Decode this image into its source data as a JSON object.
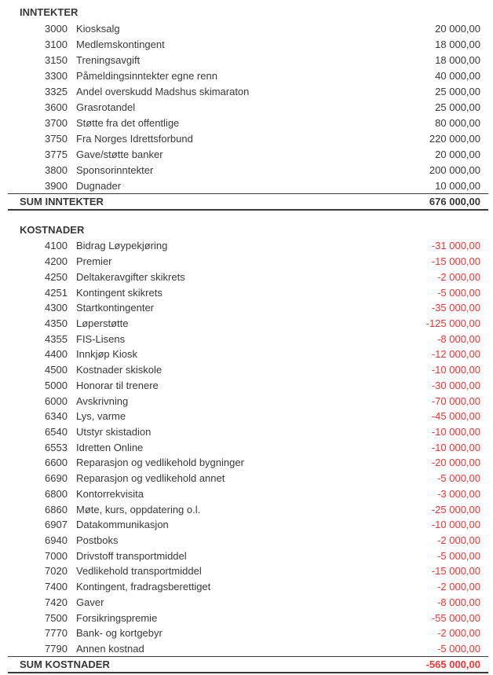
{
  "report": {
    "colors": {
      "text": "#373737",
      "negative_amount": "#ff3030",
      "sum_rule": "#3a3a3a"
    },
    "sections": [
      {
        "id": "inntekter",
        "title": "INNTEKTER",
        "rows": [
          {
            "account": "3000",
            "label": "Kiosksalg",
            "amount": "20 000,00"
          },
          {
            "account": "3100",
            "label": "Medlemskontingent",
            "amount": "18 000,00"
          },
          {
            "account": "3150",
            "label": "Treningsavgift",
            "amount": "18 000,00"
          },
          {
            "account": "3300",
            "label": "Påmeldingsinntekter egne renn",
            "amount": "40 000,00"
          },
          {
            "account": "3325",
            "label": "Andel overskudd Madshus skimaraton",
            "amount": "25 000,00"
          },
          {
            "account": "3600",
            "label": "Grasrotandel",
            "amount": "25 000,00"
          },
          {
            "account": "3700",
            "label": "Støtte fra det offentlige",
            "amount": "80 000,00"
          },
          {
            "account": "3750",
            "label": "Fra Norges Idrettsforbund",
            "amount": "220 000,00"
          },
          {
            "account": "3775",
            "label": "Gave/støtte banker",
            "amount": "20 000,00"
          },
          {
            "account": "3800",
            "label": "Sponsorinntekter",
            "amount": "200 000,00"
          },
          {
            "account": "3900",
            "label": "Dugnader",
            "amount": "10 000,00"
          }
        ],
        "sum_label": "SUM INNTEKTER",
        "sum_amount": "676 000,00"
      },
      {
        "id": "kostnader",
        "title": "KOSTNADER",
        "rows": [
          {
            "account": "4100",
            "label": "Bidrag Løypekjøring",
            "amount": "-31 000,00"
          },
          {
            "account": "4200",
            "label": "Premier",
            "amount": "-15 000,00"
          },
          {
            "account": "4250",
            "label": "Deltakeravgifter skikrets",
            "amount": "-2 000,00"
          },
          {
            "account": "4251",
            "label": "Kontingent skikrets",
            "amount": "-5 000,00"
          },
          {
            "account": "4300",
            "label": "Startkontingenter",
            "amount": "-35 000,00"
          },
          {
            "account": "4350",
            "label": "Løperstøtte",
            "amount": "-125 000,00"
          },
          {
            "account": "4355",
            "label": "FIS-Lisens",
            "amount": "-8 000,00"
          },
          {
            "account": "4400",
            "label": "Innkjøp Kiosk",
            "amount": "-12 000,00"
          },
          {
            "account": "4500",
            "label": "Kostnader skiskole",
            "amount": "-10 000,00"
          },
          {
            "account": "5000",
            "label": "Honorar til trenere",
            "amount": "-30 000,00"
          },
          {
            "account": "6000",
            "label": "Avskrivning",
            "amount": "-70 000,00"
          },
          {
            "account": "6340",
            "label": "Lys, varme",
            "amount": "-45 000,00"
          },
          {
            "account": "6540",
            "label": "Utstyr skistadion",
            "amount": "-10 000,00"
          },
          {
            "account": "6553",
            "label": "Idretten Online",
            "amount": "-10 000,00"
          },
          {
            "account": "6600",
            "label": "Reparasjon og vedlikehold bygninger",
            "amount": "-20 000,00"
          },
          {
            "account": "6690",
            "label": "Reparasjon og vedlikehold annet",
            "amount": "-5 000,00"
          },
          {
            "account": "6800",
            "label": "Kontorrekvisita",
            "amount": "-3 000,00"
          },
          {
            "account": "6860",
            "label": "Møte, kurs, oppdatering o.l.",
            "amount": "-25 000,00"
          },
          {
            "account": "6907",
            "label": "Datakommunikasjon",
            "amount": "-10 000,00"
          },
          {
            "account": "6940",
            "label": "Postboks",
            "amount": "-2 000,00"
          },
          {
            "account": "7000",
            "label": "Drivstoff transportmiddel",
            "amount": "-5 000,00"
          },
          {
            "account": "7020",
            "label": "Vedlikehold transportmiddel",
            "amount": "-15 000,00"
          },
          {
            "account": "7400",
            "label": "Kontingent, fradragsberettiget",
            "amount": "-2 000,00"
          },
          {
            "account": "7420",
            "label": "Gaver",
            "amount": "-8 000,00"
          },
          {
            "account": "7500",
            "label": "Forsikringspremie",
            "amount": "-55 000,00"
          },
          {
            "account": "7770",
            "label": "Bank- og kortgebyr",
            "amount": "-2 000,00"
          },
          {
            "account": "7790",
            "label": "Annen kostnad",
            "amount": "-5 000,00"
          }
        ],
        "sum_label": "SUM KOSTNADER",
        "sum_amount": "-565 000,00"
      }
    ]
  }
}
